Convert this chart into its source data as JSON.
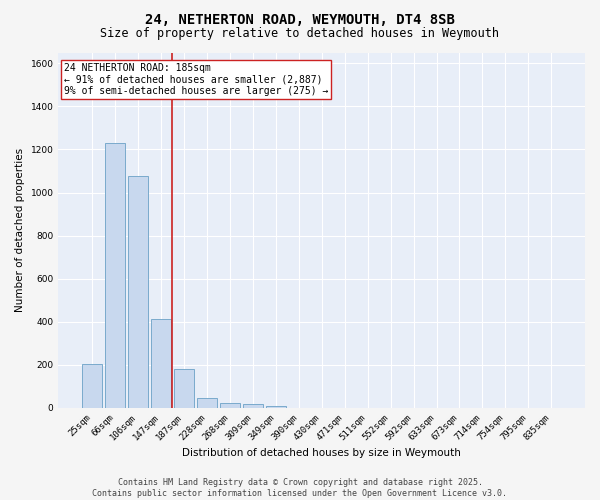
{
  "title_line1": "24, NETHERTON ROAD, WEYMOUTH, DT4 8SB",
  "title_line2": "Size of property relative to detached houses in Weymouth",
  "xlabel": "Distribution of detached houses by size in Weymouth",
  "ylabel": "Number of detached properties",
  "categories": [
    "25sqm",
    "66sqm",
    "106sqm",
    "147sqm",
    "187sqm",
    "228sqm",
    "268sqm",
    "309sqm",
    "349sqm",
    "390sqm",
    "430sqm",
    "471sqm",
    "511sqm",
    "552sqm",
    "592sqm",
    "633sqm",
    "673sqm",
    "714sqm",
    "754sqm",
    "795sqm",
    "835sqm"
  ],
  "values": [
    205,
    1230,
    1075,
    415,
    180,
    45,
    25,
    18,
    10,
    0,
    0,
    0,
    0,
    0,
    0,
    0,
    0,
    0,
    0,
    0,
    0
  ],
  "bar_color": "#c8d8ee",
  "bar_edge_color": "#7aaacc",
  "vline_color": "#cc2222",
  "vline_pos": 3.5,
  "annotation_text": "24 NETHERTON ROAD: 185sqm\n← 91% of detached houses are smaller (2,887)\n9% of semi-detached houses are larger (275) →",
  "annotation_box_facecolor": "#ffffff",
  "annotation_box_edgecolor": "#cc2222",
  "ylim": [
    0,
    1650
  ],
  "yticks": [
    0,
    200,
    400,
    600,
    800,
    1000,
    1200,
    1400,
    1600
  ],
  "plot_bg_color": "#e8eef8",
  "fig_bg_color": "#f5f5f5",
  "grid_color": "#ffffff",
  "title_fontsize": 10,
  "subtitle_fontsize": 8.5,
  "axis_label_fontsize": 7.5,
  "tick_fontsize": 6.5,
  "annotation_fontsize": 7,
  "footer_fontsize": 6,
  "footer_line1": "Contains HM Land Registry data © Crown copyright and database right 2025.",
  "footer_line2": "Contains public sector information licensed under the Open Government Licence v3.0."
}
